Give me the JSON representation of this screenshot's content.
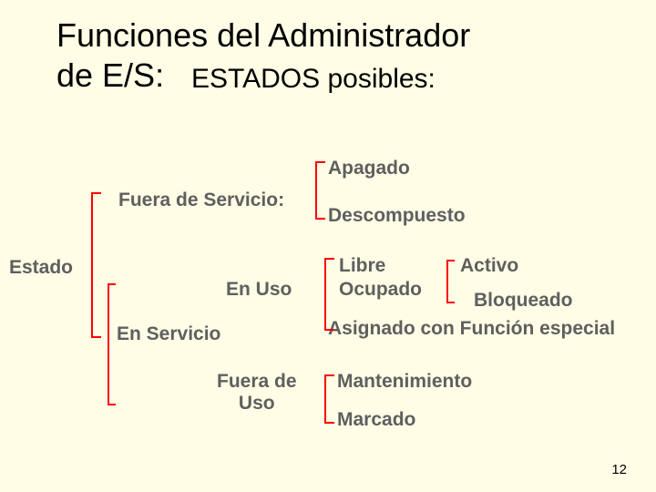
{
  "slide": {
    "background_color": "#fffde6",
    "number": "12",
    "number_color": "#000000",
    "number_fontsize": 15
  },
  "title": {
    "line1": "Funciones del Administrador",
    "line2_a": "de E/S:",
    "line2_b": "ESTADOS posibles:",
    "color": "#000000",
    "fontsize_main": 36,
    "fontsize_sub": 30
  },
  "labels": {
    "color": "#5f5f5f",
    "fontsize": 21,
    "fontweight": "bold",
    "estado": "Estado",
    "fuera_servicio": "Fuera de Servicio:",
    "en_servicio": "En Servicio",
    "en_uso": "En Uso",
    "fuera_uso_l1": "Fuera de",
    "fuera_uso_l2": "Uso",
    "apagado": "Apagado",
    "descompuesto": "Descompuesto",
    "libre": "Libre",
    "ocupado": "Ocupado",
    "activo": "Activo",
    "bloqueado": "Bloqueado",
    "asignado": "Asignado con Función especial",
    "mantenimiento": "Mantenimiento",
    "marcado": "Marcado"
  },
  "bracket": {
    "color": "#ff0000",
    "stroke_width": 2
  }
}
